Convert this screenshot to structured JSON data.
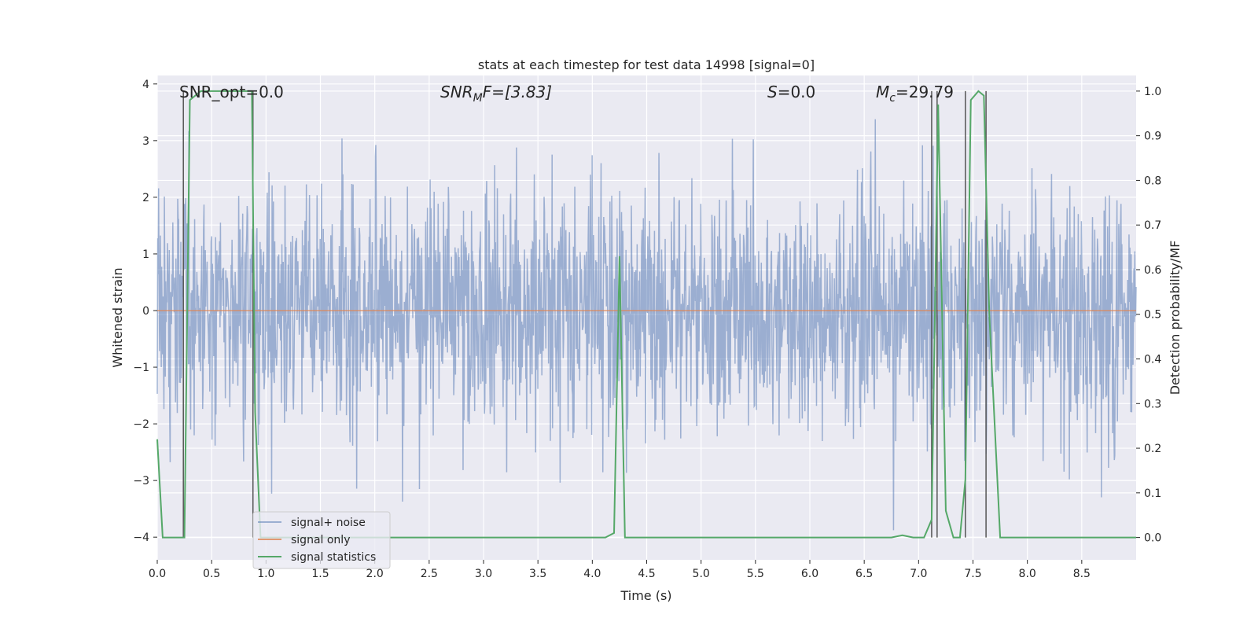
{
  "chart_data": {
    "type": "line",
    "title": "stats at each timestep for test data 14998 [signal=0]",
    "xlabel": "Time (s)",
    "ylabel": "Whitened strain",
    "y2label": "Detection probability/MF",
    "xlim": [
      0,
      9.0
    ],
    "ylim": [
      -4.4,
      4.15
    ],
    "y2lim": [
      -0.05,
      1.035
    ],
    "xticks": [
      0.0,
      0.5,
      1.0,
      1.5,
      2.0,
      2.5,
      3.0,
      3.5,
      4.0,
      4.5,
      5.0,
      5.5,
      6.0,
      6.5,
      7.0,
      7.5,
      8.0,
      8.5
    ],
    "xtick_labels": [
      "0.0",
      "0.5",
      "1.0",
      "1.5",
      "2.0",
      "2.5",
      "3.0",
      "3.5",
      "4.0",
      "4.5",
      "5.0",
      "5.5",
      "6.0",
      "6.5",
      "7.0",
      "7.5",
      "8.0",
      "8.5"
    ],
    "yticks": [
      -4,
      -3,
      -2,
      -1,
      0,
      1,
      2,
      3,
      4
    ],
    "ytick_labels": [
      "−4",
      "−3",
      "−2",
      "−1",
      "0",
      "1",
      "2",
      "3",
      "4"
    ],
    "y2ticks": [
      0.0,
      0.1,
      0.2,
      0.3,
      0.4,
      0.5,
      0.6,
      0.7,
      0.8,
      0.9,
      1.0
    ],
    "y2tick_labels": [
      "0.0",
      "0.1",
      "0.2",
      "0.3",
      "0.4",
      "0.5",
      "0.6",
      "0.7",
      "0.8",
      "0.9",
      "1.0"
    ],
    "grid": true,
    "legend_position": "lower-left",
    "annotations": {
      "snr_opt": "SNR_opt=0.0",
      "snr_mf_base": "SNR",
      "snr_mf_sub": "M",
      "snr_mf_rest": "F=[3.83]",
      "s_italic": "S",
      "s_rest": "=0.0",
      "mc_base": "M",
      "mc_sub": "c",
      "mc_rest": "=29.79"
    },
    "series": [
      {
        "name": "signal+ noise",
        "color": "#4c72b0",
        "axis": "left",
        "description_values": "gaussian noise, std approx 1, range about -4 to 3.8"
      },
      {
        "name": "signal only",
        "color": "#dd8452",
        "axis": "left",
        "x": [
          0.0,
          9.0
        ],
        "y": [
          0.0,
          0.0
        ]
      },
      {
        "name": "signal statistics",
        "color": "#55a868",
        "axis": "right",
        "x": [
          0.0,
          0.05,
          0.25,
          0.3,
          0.4,
          0.5,
          0.6,
          0.7,
          0.8,
          0.87,
          0.9,
          0.95,
          1.0,
          1.5,
          2.0,
          2.5,
          3.0,
          3.5,
          4.0,
          4.12,
          4.2,
          4.25,
          4.3,
          4.4,
          4.5,
          5.0,
          5.5,
          6.0,
          6.5,
          6.75,
          6.85,
          6.95,
          7.05,
          7.12,
          7.18,
          7.25,
          7.32,
          7.38,
          7.43,
          7.48,
          7.55,
          7.6,
          7.65,
          7.75,
          7.8,
          8.0,
          8.5,
          9.0
        ],
        "y": [
          0.22,
          0.0,
          0.0,
          0.98,
          1.0,
          1.0,
          1.0,
          1.0,
          1.0,
          1.0,
          0.28,
          0.0,
          0.0,
          0.0,
          0.0,
          0.0,
          0.0,
          0.0,
          0.0,
          0.0,
          0.01,
          0.63,
          0.0,
          0.0,
          0.0,
          0.0,
          0.0,
          0.0,
          0.0,
          0.0,
          0.005,
          0.0,
          0.0,
          0.04,
          0.97,
          0.06,
          0.0,
          0.0,
          0.13,
          0.98,
          1.0,
          0.99,
          0.5,
          0.0,
          0.0,
          0.0,
          0.0,
          0.0
        ]
      }
    ],
    "vlines": [
      0.24,
      0.88,
      7.12,
      7.17,
      7.43,
      7.62
    ]
  },
  "legend": {
    "items": [
      {
        "label": "signal+ noise",
        "color": "#4c72b0"
      },
      {
        "label": "signal only",
        "color": "#dd8452"
      },
      {
        "label": "signal statistics",
        "color": "#55a868"
      }
    ]
  }
}
